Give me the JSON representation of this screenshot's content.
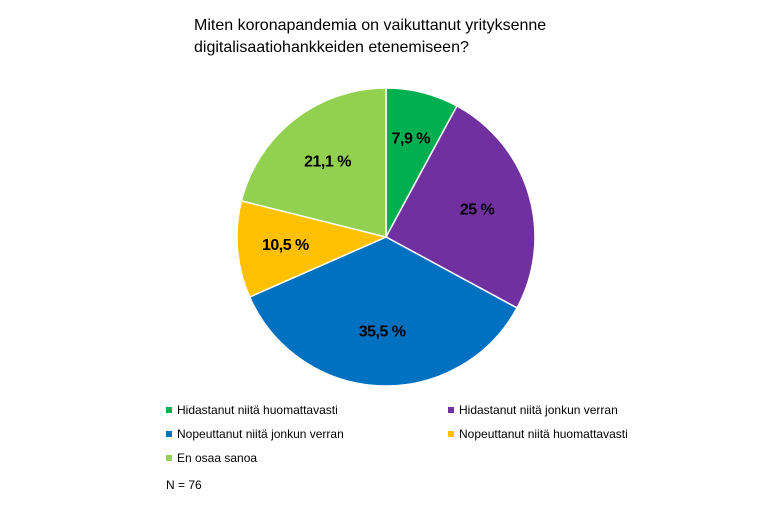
{
  "chart_data": {
    "type": "pie",
    "title_lines": [
      "Miten koronapandemia on vaikuttanut yrityksenne",
      "digitalisaatiohankkeiden etenemiseen?"
    ],
    "slices": [
      {
        "category": "Hidastanut niitä huomattavasti",
        "value": 7.9,
        "label": "7,9 %",
        "color": "#00b050"
      },
      {
        "category": "Hidastanut niitä jonkun verran",
        "value": 25,
        "label": "25 %",
        "color": "#7030a0"
      },
      {
        "category": "Nopeuttanut niitä jonkun verran",
        "value": 35.5,
        "label": "35,5 %",
        "color": "#0070c0"
      },
      {
        "category": "Nopeuttanut niitä huomattavasti",
        "value": 10.5,
        "label": "10,5 %",
        "color": "#ffc000"
      },
      {
        "category": "En osaa sanoa",
        "value": 21.1,
        "label": "21,1 %",
        "color": "#92d050"
      }
    ],
    "start_angle": "12 o'clock",
    "direction": "clockwise",
    "legend_position": "bottom",
    "note": "N = 76"
  }
}
